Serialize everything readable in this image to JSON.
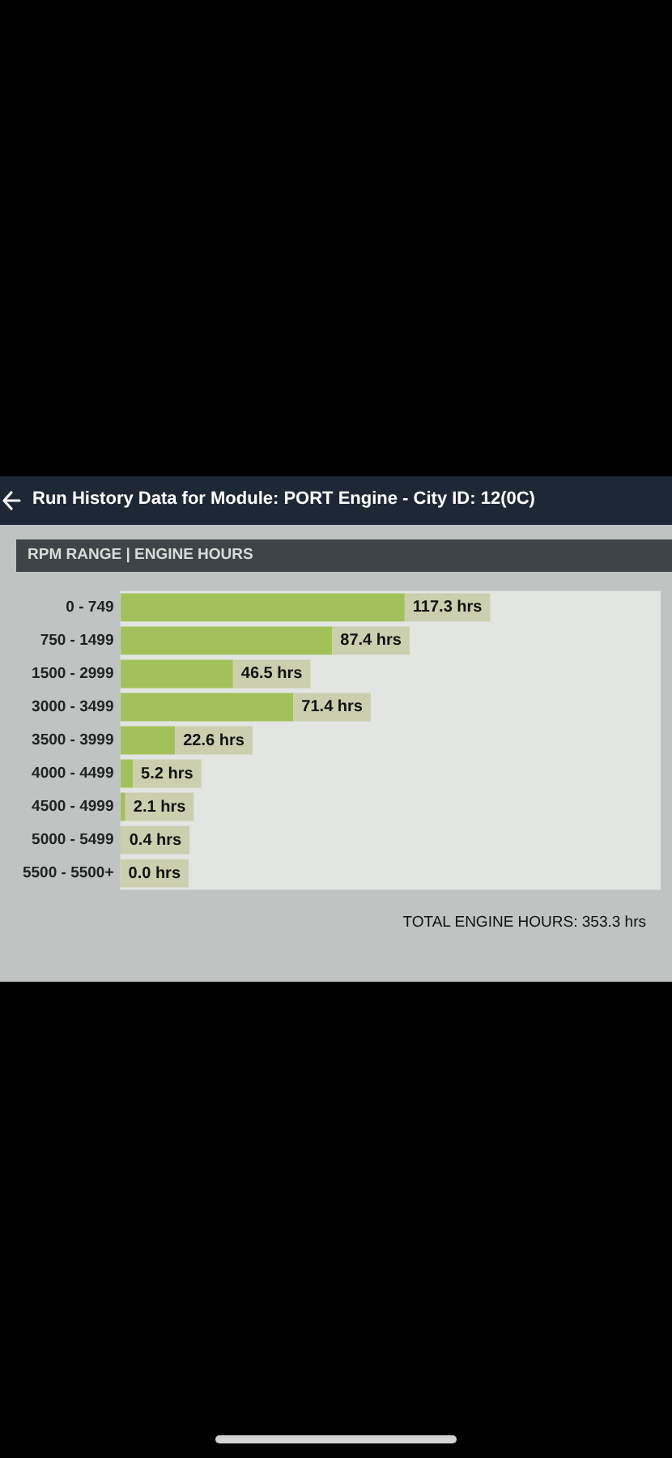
{
  "chart_data": {
    "type": "bar",
    "orientation": "horizontal",
    "title": "Run History Data for Module: PORT Engine - City ID: 12(0C)",
    "subtitle": "RPM RANGE | ENGINE HOURS",
    "categories": [
      "0 - 749",
      "750 - 1499",
      "1500 - 2999",
      "3000 - 3499",
      "3500 - 3999",
      "4000 - 4499",
      "4500 - 4999",
      "5000 - 5499",
      "5500 - 5500+"
    ],
    "values": [
      117.3,
      87.4,
      46.5,
      71.4,
      22.6,
      5.2,
      2.1,
      0.4,
      0.0
    ],
    "value_labels": [
      "117.3 hrs",
      "87.4 hrs",
      "46.5 hrs",
      "71.4 hrs",
      "22.6 hrs",
      "5.2 hrs",
      "2.1 hrs",
      "0.4 hrs",
      "0.0 hrs"
    ],
    "color": "#a3c15a",
    "tick_labels": "y",
    "annotations": [
      "TOTAL ENGINE HOURS: 353.3 hrs"
    ]
  }
}
